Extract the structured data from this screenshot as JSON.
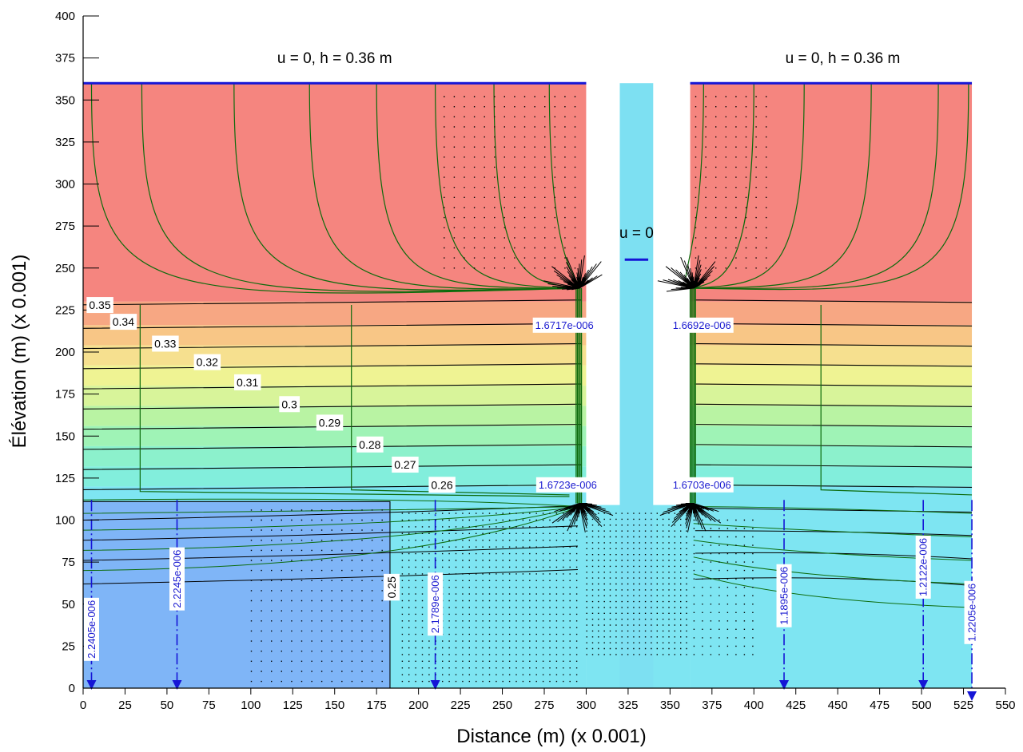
{
  "chart_data": {
    "type": "contour",
    "xlabel": "Distance (m) (x 0.001)",
    "ylabel": "Élévation (m) (x 0.001)",
    "xlim": [
      0,
      550
    ],
    "ylim": [
      0,
      400
    ],
    "xticks": [
      0,
      25,
      50,
      75,
      100,
      125,
      150,
      175,
      200,
      225,
      250,
      275,
      300,
      325,
      350,
      375,
      400,
      425,
      450,
      475,
      500,
      525,
      550
    ],
    "yticks": [
      0,
      25,
      50,
      75,
      100,
      125,
      150,
      175,
      200,
      225,
      250,
      275,
      300,
      325,
      350,
      375,
      400
    ],
    "grid": false,
    "boundary_labels": [
      {
        "text": "u = 0, h = 0.36 m",
        "x": 150,
        "y": 372
      },
      {
        "text": "u = 0, h = 0.36 m",
        "x": 453,
        "y": 372
      },
      {
        "text": "u = 0",
        "x": 330,
        "y": 268
      }
    ],
    "contour_labels": [
      {
        "text": "0.35",
        "x": 10,
        "y": 228
      },
      {
        "text": "0.34",
        "x": 24,
        "y": 218
      },
      {
        "text": "0.33",
        "x": 49,
        "y": 205
      },
      {
        "text": "0.32",
        "x": 74,
        "y": 194
      },
      {
        "text": "0.31",
        "x": 98,
        "y": 182
      },
      {
        "text": "0.3",
        "x": 123,
        "y": 169
      },
      {
        "text": "0.29",
        "x": 147,
        "y": 158
      },
      {
        "text": "0.28",
        "x": 171,
        "y": 145
      },
      {
        "text": "0.27",
        "x": 192,
        "y": 133
      },
      {
        "text": "0.26",
        "x": 214,
        "y": 121
      },
      {
        "text": "0.25",
        "x": 184,
        "y": 60,
        "vertical": true
      }
    ],
    "flux_labels": [
      {
        "text": "1.6717e-006",
        "x": 287,
        "y": 216
      },
      {
        "text": "1.6692e-006",
        "x": 369,
        "y": 216
      },
      {
        "text": "1.6723e-006",
        "x": 289,
        "y": 121
      },
      {
        "text": "1.6703e-006",
        "x": 369,
        "y": 121
      },
      {
        "text": "2.2405e-006",
        "x": 5,
        "y": 35,
        "vertical": true
      },
      {
        "text": "2.2245e-006",
        "x": 56,
        "y": 65,
        "vertical": true
      },
      {
        "text": "2.1789e-006",
        "x": 210,
        "y": 50,
        "vertical": true
      },
      {
        "text": "1.1895e-006",
        "x": 418,
        "y": 55,
        "vertical": true
      },
      {
        "text": "1.2122e-006",
        "x": 501,
        "y": 72,
        "vertical": true
      },
      {
        "text": "1.2205e-006",
        "x": 530,
        "y": 45,
        "vertical": true
      }
    ],
    "flux_sections_x": [
      5,
      56,
      210,
      418,
      501,
      530
    ],
    "color_bands": [
      {
        "y0": 230,
        "y1": 360,
        "color": "#f5857f"
      },
      {
        "y0": 216,
        "y1": 230,
        "color": "#f7a783"
      },
      {
        "y0": 204,
        "y1": 216,
        "color": "#f8c686"
      },
      {
        "y0": 192,
        "y1": 204,
        "color": "#f6e08f"
      },
      {
        "y0": 180,
        "y1": 192,
        "color": "#eff393"
      },
      {
        "y0": 168,
        "y1": 180,
        "color": "#d8f49a"
      },
      {
        "y0": 156,
        "y1": 168,
        "color": "#b9f3a3"
      },
      {
        "y0": 144,
        "y1": 156,
        "color": "#9ff3b6"
      },
      {
        "y0": 132,
        "y1": 144,
        "color": "#8cf1cc"
      },
      {
        "y0": 120,
        "y1": 132,
        "color": "#82eedc"
      },
      {
        "y0": 0,
        "y1": 120,
        "color": "#7ee5f2"
      }
    ],
    "low_region_color": "#7fb5f7",
    "low_region_x": [
      0,
      183
    ],
    "low_region_y": [
      0,
      111
    ],
    "domain": {
      "x": [
        0,
        530
      ],
      "y": [
        0,
        360
      ]
    },
    "wall_gaps": [
      [
        300,
        320
      ],
      [
        340,
        362
      ]
    ],
    "trench": {
      "x": [
        320,
        340
      ],
      "y": [
        0,
        360
      ],
      "color": "#7de0f2"
    },
    "boundary_color": "#1515d6",
    "contour_color": "#000000",
    "flowline_color": "#0c6b0c"
  }
}
